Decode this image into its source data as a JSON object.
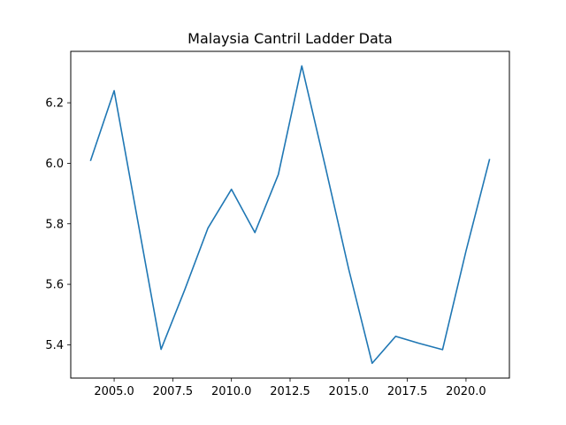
{
  "chart_data": {
    "type": "line",
    "title": "Malaysia Cantril Ladder Data",
    "xlabel": "",
    "ylabel": "",
    "xlim": [
      2003.15,
      2021.85
    ],
    "ylim": [
      5.29,
      6.37
    ],
    "xticks": [
      "2005.0",
      "2007.5",
      "2010.0",
      "2012.5",
      "2015.0",
      "2017.5",
      "2020.0"
    ],
    "xtick_values": [
      2005.0,
      2007.5,
      2010.0,
      2012.5,
      2015.0,
      2017.5,
      2020.0
    ],
    "yticks": [
      "5.4",
      "5.6",
      "5.8",
      "6.0",
      "6.2"
    ],
    "ytick_values": [
      5.4,
      5.6,
      5.8,
      6.0,
      6.2
    ],
    "grid": false,
    "series": [
      {
        "color": "#1f77b4",
        "x": [
          2004,
          2005,
          2007,
          2008,
          2009,
          2010,
          2011,
          2012,
          2013,
          2014,
          2015,
          2016,
          2017,
          2018,
          2019,
          2020,
          2021
        ],
        "y": [
          6.01,
          6.24,
          5.385,
          5.58,
          5.786,
          5.914,
          5.771,
          5.963,
          6.322,
          5.99,
          5.65,
          5.339,
          5.428,
          5.405,
          5.384,
          5.71,
          6.012
        ]
      }
    ]
  }
}
